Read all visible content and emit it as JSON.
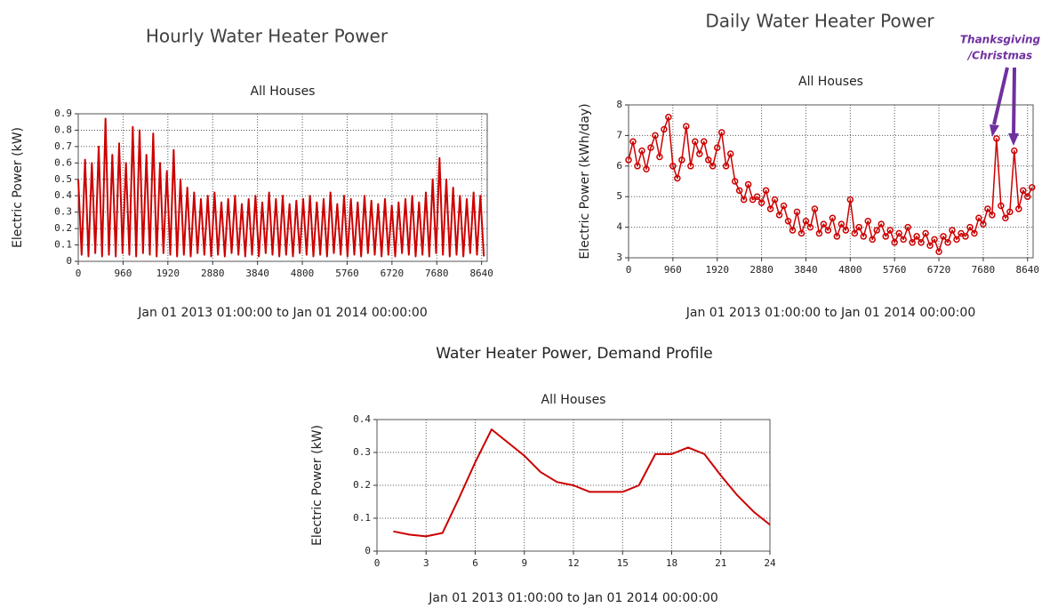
{
  "chart_data": [
    {
      "type": "line",
      "title": "Hourly Water Heater Power",
      "subtitle": "All Houses",
      "ylabel": "Electric Power (kW)",
      "xlabel": "Jan 01 2013 01:00:00 to Jan 01 2014 00:00:00",
      "x": [
        0,
        73,
        146,
        219,
        292,
        365,
        438,
        511,
        584,
        657,
        730,
        803,
        876,
        949,
        1022,
        1095,
        1168,
        1241,
        1314,
        1387,
        1460,
        1533,
        1606,
        1679,
        1752,
        1825,
        1898,
        1971,
        2044,
        2117,
        2190,
        2263,
        2336,
        2409,
        2482,
        2555,
        2628,
        2701,
        2774,
        2847,
        2920,
        2993,
        3066,
        3139,
        3212,
        3285,
        3358,
        3431,
        3504,
        3577,
        3650,
        3723,
        3796,
        3869,
        3942,
        4015,
        4088,
        4161,
        4234,
        4307,
        4380,
        4453,
        4526,
        4599,
        4672,
        4745,
        4818,
        4891,
        4964,
        5037,
        5110,
        5183,
        5256,
        5329,
        5402,
        5475,
        5548,
        5621,
        5694,
        5767,
        5840,
        5913,
        5986,
        6059,
        6132,
        6205,
        6278,
        6351,
        6424,
        6497,
        6570,
        6643,
        6716,
        6789,
        6862,
        6935,
        7008,
        7081,
        7154,
        7227,
        7300,
        7373,
        7446,
        7519,
        7592,
        7665,
        7738,
        7811,
        7884,
        7957,
        8030,
        8103,
        8176,
        8249,
        8322,
        8395,
        8468,
        8541,
        8614,
        8687
      ],
      "values": [
        0.5,
        0.04,
        0.62,
        0.03,
        0.6,
        0.05,
        0.7,
        0.03,
        0.87,
        0.04,
        0.65,
        0.03,
        0.72,
        0.05,
        0.6,
        0.04,
        0.82,
        0.03,
        0.8,
        0.05,
        0.65,
        0.04,
        0.78,
        0.03,
        0.6,
        0.05,
        0.55,
        0.04,
        0.68,
        0.03,
        0.5,
        0.04,
        0.45,
        0.03,
        0.42,
        0.05,
        0.38,
        0.04,
        0.4,
        0.03,
        0.42,
        0.04,
        0.36,
        0.03,
        0.38,
        0.05,
        0.4,
        0.04,
        0.35,
        0.03,
        0.38,
        0.04,
        0.4,
        0.03,
        0.36,
        0.05,
        0.42,
        0.04,
        0.38,
        0.03,
        0.4,
        0.04,
        0.35,
        0.03,
        0.37,
        0.05,
        0.38,
        0.04,
        0.4,
        0.03,
        0.36,
        0.04,
        0.38,
        0.03,
        0.42,
        0.05,
        0.35,
        0.04,
        0.4,
        0.03,
        0.38,
        0.04,
        0.36,
        0.03,
        0.4,
        0.05,
        0.37,
        0.04,
        0.35,
        0.03,
        0.38,
        0.04,
        0.34,
        0.03,
        0.36,
        0.05,
        0.38,
        0.04,
        0.4,
        0.03,
        0.36,
        0.04,
        0.42,
        0.03,
        0.5,
        0.05,
        0.63,
        0.04,
        0.5,
        0.03,
        0.45,
        0.04,
        0.4,
        0.03,
        0.38,
        0.05,
        0.42,
        0.04,
        0.4,
        0.03
      ],
      "color": "#cc0000",
      "xlim": [
        0,
        8760
      ],
      "xticks": [
        0,
        960,
        1920,
        2880,
        3840,
        4800,
        5760,
        6720,
        7680,
        8640
      ],
      "ylim": [
        0,
        0.9
      ],
      "yticks": [
        0,
        0.1,
        0.2,
        0.3,
        0.4,
        0.5,
        0.6,
        0.7,
        0.8,
        0.9
      ],
      "grid": true,
      "markers": false
    },
    {
      "type": "line",
      "title": "Daily Water Heater Power",
      "subtitle": "All Houses",
      "ylabel": "Electric Power (kWh/day)",
      "xlabel": "Jan 01 2013 01:00:00 to Jan 01 2014 00:00:00",
      "annotation": [
        "Thanksgiving",
        "/Christmas"
      ],
      "x": [
        0,
        96,
        192,
        288,
        384,
        480,
        576,
        672,
        768,
        864,
        960,
        1056,
        1152,
        1248,
        1344,
        1440,
        1536,
        1632,
        1728,
        1824,
        1920,
        2016,
        2112,
        2208,
        2304,
        2400,
        2496,
        2592,
        2688,
        2784,
        2880,
        2976,
        3072,
        3168,
        3264,
        3360,
        3456,
        3552,
        3648,
        3744,
        3840,
        3936,
        4032,
        4128,
        4224,
        4320,
        4416,
        4512,
        4608,
        4704,
        4800,
        4896,
        4992,
        5088,
        5184,
        5280,
        5376,
        5472,
        5568,
        5664,
        5760,
        5856,
        5952,
        6048,
        6144,
        6240,
        6336,
        6432,
        6528,
        6624,
        6720,
        6816,
        6912,
        7008,
        7104,
        7200,
        7296,
        7392,
        7488,
        7584,
        7680,
        7776,
        7872,
        7968,
        8064,
        8160,
        8256,
        8352,
        8448,
        8544,
        8640,
        8736
      ],
      "values": [
        6.2,
        6.8,
        6.0,
        6.5,
        5.9,
        6.6,
        7.0,
        6.3,
        7.2,
        7.6,
        6.0,
        5.6,
        6.2,
        7.3,
        6.0,
        6.8,
        6.4,
        6.8,
        6.2,
        6.0,
        6.6,
        7.1,
        6.0,
        6.4,
        5.5,
        5.2,
        4.9,
        5.4,
        4.9,
        5.0,
        4.8,
        5.2,
        4.6,
        4.9,
        4.4,
        4.7,
        4.2,
        3.9,
        4.5,
        3.8,
        4.2,
        4.0,
        4.6,
        3.8,
        4.1,
        3.9,
        4.3,
        3.7,
        4.1,
        3.9,
        4.9,
        3.8,
        4.0,
        3.7,
        4.2,
        3.6,
        3.9,
        4.1,
        3.7,
        3.9,
        3.5,
        3.8,
        3.6,
        4.0,
        3.5,
        3.7,
        3.5,
        3.8,
        3.4,
        3.6,
        3.2,
        3.7,
        3.5,
        3.9,
        3.6,
        3.8,
        3.7,
        4.0,
        3.8,
        4.3,
        4.1,
        4.6,
        4.4,
        6.9,
        4.7,
        4.3,
        4.5,
        6.5,
        4.6,
        5.2,
        5.0,
        5.3
      ],
      "color": "#cc0000",
      "xlim": [
        0,
        8760
      ],
      "xticks": [
        0,
        960,
        1920,
        2880,
        3840,
        4800,
        5760,
        6720,
        7680,
        8640
      ],
      "ylim": [
        3,
        8
      ],
      "yticks": [
        3,
        4,
        5,
        6,
        7,
        8
      ],
      "grid": true,
      "markers": true
    },
    {
      "type": "line",
      "title": "Water Heater Power, Demand Profile",
      "subtitle": "All Houses",
      "ylabel": "Electric Power (kW)",
      "xlabel": "Jan 01 2013 01:00:00 to Jan 01 2014 00:00:00",
      "x": [
        1,
        2,
        3,
        4,
        5,
        6,
        7,
        8,
        9,
        10,
        11,
        12,
        13,
        14,
        15,
        16,
        17,
        18,
        19,
        20,
        21,
        22,
        23,
        24
      ],
      "values": [
        0.06,
        0.05,
        0.045,
        0.055,
        0.16,
        0.27,
        0.37,
        0.33,
        0.29,
        0.24,
        0.21,
        0.2,
        0.18,
        0.18,
        0.18,
        0.2,
        0.295,
        0.295,
        0.315,
        0.295,
        0.23,
        0.17,
        0.12,
        0.08
      ],
      "color": "#cc0000",
      "xlim": [
        0,
        24
      ],
      "xticks": [
        0,
        3,
        6,
        9,
        12,
        15,
        18,
        21,
        24
      ],
      "ylim": [
        0,
        0.4
      ],
      "yticks": [
        0,
        0.1,
        0.2,
        0.3,
        0.4
      ],
      "grid": true,
      "markers": false
    }
  ]
}
